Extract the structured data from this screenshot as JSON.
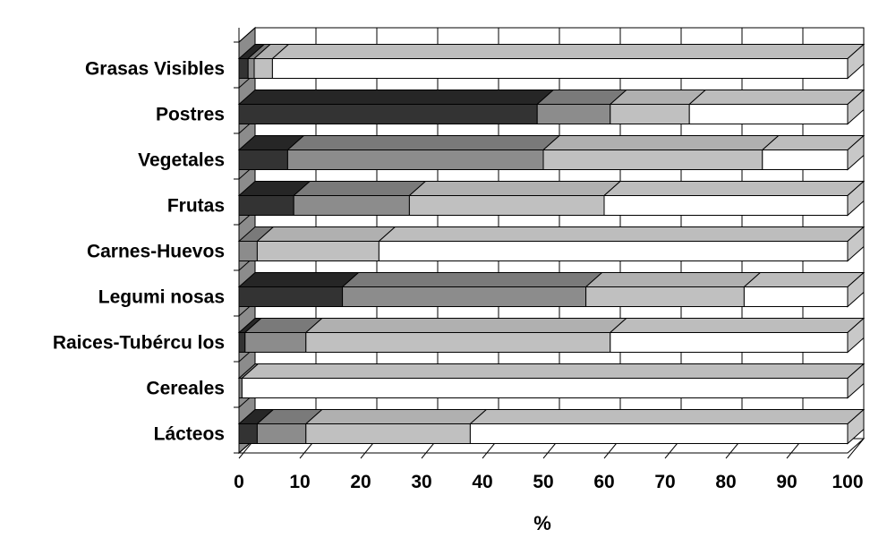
{
  "chart_data": {
    "type": "bar",
    "orientation": "horizontal",
    "stacked": true,
    "three_d": true,
    "categories": [
      "Lácteos",
      "Cereales",
      "Raices-Tubércu los",
      "Legumi nosas",
      "Carnes-Huevos",
      "Frutas",
      "Vegetales",
      "Postres",
      "Grasas Visibles"
    ],
    "series": [
      {
        "color": "#333333",
        "values": [
          3,
          0,
          1,
          17,
          0,
          9,
          8,
          49,
          1.5
        ]
      },
      {
        "color": "#8c8c8c",
        "values": [
          8,
          0.5,
          10,
          40,
          3,
          19,
          42,
          12,
          1
        ]
      },
      {
        "color": "#c0c0c0",
        "values": [
          27,
          0,
          50,
          26,
          20,
          32,
          36,
          13,
          3
        ]
      },
      {
        "color": "#ffffff",
        "values": [
          62,
          99.5,
          39,
          17,
          77,
          40,
          14,
          26,
          94.5
        ]
      }
    ],
    "xlabel": "%",
    "ylabel": "",
    "xlim": [
      0,
      100
    ],
    "xticks": [
      "0",
      "10",
      "20",
      "30",
      "40",
      "50",
      "60",
      "70",
      "80",
      "90",
      "100"
    ],
    "grid": true,
    "legend": "none"
  }
}
